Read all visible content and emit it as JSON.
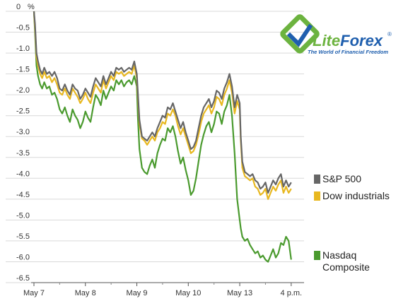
{
  "logo": {
    "text_lite": "Lite",
    "text_forex": "Forex",
    "registered": "®",
    "tagline": "The World of Financial Freedom",
    "color_green": "#6cb33f",
    "color_blue": "#1f5fae"
  },
  "chart_data": {
    "type": "line",
    "title": "",
    "xlabel": "",
    "ylabel": "%",
    "ylim": [
      -6.5,
      0
    ],
    "yticks": [
      0,
      -0.5,
      -1.0,
      -1.5,
      -2.0,
      -2.5,
      -3.0,
      -3.5,
      -4.0,
      -4.5,
      -5.0,
      -5.5,
      -6.0,
      -6.5
    ],
    "ytick_labels": [
      "0",
      "-0.5",
      "-1.0",
      "-1.5",
      "-2.0",
      "-2.5",
      "-3.0",
      "-3.5",
      "-4.0",
      "-4.5",
      "-5.0",
      "-5.5",
      "-6.0",
      "-6.5"
    ],
    "y_unit_label": "%",
    "xlim": [
      0,
      5.25
    ],
    "x_ticks": [
      0,
      1,
      2,
      3,
      4,
      5.0
    ],
    "x_tick_labels": [
      "May 7",
      "May 8",
      "May 9",
      "May 10",
      "May 13",
      "4 p.m."
    ],
    "grid": true,
    "legend_placement": "right",
    "series": [
      {
        "name": "S&P 500",
        "color": "#666666",
        "x": [
          0,
          0.02,
          0.05,
          0.08,
          0.12,
          0.16,
          0.2,
          0.25,
          0.3,
          0.35,
          0.4,
          0.45,
          0.5,
          0.55,
          0.6,
          0.65,
          0.7,
          0.75,
          0.8,
          0.85,
          0.9,
          0.95,
          1.0,
          1.05,
          1.1,
          1.15,
          1.2,
          1.25,
          1.3,
          1.35,
          1.4,
          1.45,
          1.5,
          1.55,
          1.6,
          1.65,
          1.7,
          1.75,
          1.8,
          1.85,
          1.9,
          1.95,
          2.0,
          2.02,
          2.05,
          2.1,
          2.15,
          2.2,
          2.25,
          2.3,
          2.35,
          2.4,
          2.45,
          2.5,
          2.55,
          2.6,
          2.65,
          2.7,
          2.75,
          2.8,
          2.85,
          2.9,
          2.95,
          3.0,
          3.05,
          3.1,
          3.15,
          3.2,
          3.25,
          3.3,
          3.35,
          3.4,
          3.45,
          3.5,
          3.55,
          3.6,
          3.65,
          3.7,
          3.75,
          3.8,
          3.85,
          3.9,
          3.95,
          4.0,
          4.02,
          4.05,
          4.1,
          4.15,
          4.2,
          4.25,
          4.3,
          4.35,
          4.4,
          4.45,
          4.5,
          4.55,
          4.6,
          4.65,
          4.7,
          4.75,
          4.8,
          4.85,
          4.9,
          4.95,
          5.0
        ],
        "values": [
          0,
          -0.3,
          -1.0,
          -1.2,
          -1.4,
          -1.5,
          -1.35,
          -1.5,
          -1.45,
          -1.55,
          -1.45,
          -1.6,
          -1.85,
          -1.9,
          -1.75,
          -1.9,
          -2.0,
          -1.75,
          -1.85,
          -1.9,
          -2.1,
          -2.0,
          -1.85,
          -1.95,
          -2.05,
          -1.8,
          -1.6,
          -1.7,
          -1.8,
          -1.55,
          -1.75,
          -1.6,
          -1.45,
          -1.55,
          -1.35,
          -1.4,
          -1.35,
          -1.45,
          -1.4,
          -1.35,
          -1.4,
          -1.2,
          -1.5,
          -1.95,
          -2.6,
          -3.0,
          -3.05,
          -3.1,
          -3.0,
          -2.9,
          -3.0,
          -2.8,
          -2.65,
          -2.5,
          -2.55,
          -2.3,
          -2.35,
          -2.2,
          -2.4,
          -2.6,
          -2.8,
          -2.65,
          -2.9,
          -3.1,
          -3.3,
          -3.25,
          -3.1,
          -2.8,
          -2.5,
          -2.3,
          -2.2,
          -2.1,
          -2.3,
          -2.15,
          -1.9,
          -1.95,
          -2.1,
          -1.85,
          -1.7,
          -1.5,
          -1.8,
          -2.3,
          -2.0,
          -2.2,
          -3.0,
          -3.6,
          -3.85,
          -3.9,
          -3.95,
          -3.9,
          -4.05,
          -4.1,
          -4.25,
          -4.2,
          -4.1,
          -4.35,
          -4.2,
          -4.05,
          -4.15,
          -4.0,
          -3.9,
          -4.2,
          -4.05,
          -4.2,
          -4.1
        ]
      },
      {
        "name": "Dow industrials",
        "color": "#e8b820",
        "x": [
          0,
          0.02,
          0.05,
          0.08,
          0.12,
          0.16,
          0.2,
          0.25,
          0.3,
          0.35,
          0.4,
          0.45,
          0.5,
          0.55,
          0.6,
          0.65,
          0.7,
          0.75,
          0.8,
          0.85,
          0.9,
          0.95,
          1.0,
          1.05,
          1.1,
          1.15,
          1.2,
          1.25,
          1.3,
          1.35,
          1.4,
          1.45,
          1.5,
          1.55,
          1.6,
          1.65,
          1.7,
          1.75,
          1.8,
          1.85,
          1.9,
          1.95,
          2.0,
          2.02,
          2.05,
          2.1,
          2.15,
          2.2,
          2.25,
          2.3,
          2.35,
          2.4,
          2.45,
          2.5,
          2.55,
          2.6,
          2.65,
          2.7,
          2.75,
          2.8,
          2.85,
          2.9,
          2.95,
          3.0,
          3.05,
          3.1,
          3.15,
          3.2,
          3.25,
          3.3,
          3.35,
          3.4,
          3.45,
          3.5,
          3.55,
          3.6,
          3.65,
          3.7,
          3.75,
          3.8,
          3.85,
          3.9,
          3.95,
          4.0,
          4.02,
          4.05,
          4.1,
          4.15,
          4.2,
          4.25,
          4.3,
          4.35,
          4.4,
          4.45,
          4.5,
          4.55,
          4.6,
          4.65,
          4.7,
          4.75,
          4.8,
          4.85,
          4.9,
          4.95,
          5.0
        ],
        "values": [
          0,
          -0.4,
          -1.1,
          -1.3,
          -1.5,
          -1.6,
          -1.45,
          -1.6,
          -1.55,
          -1.7,
          -1.6,
          -1.75,
          -1.95,
          -2.0,
          -1.85,
          -2.0,
          -2.1,
          -1.85,
          -1.95,
          -2.05,
          -2.2,
          -2.1,
          -1.95,
          -2.1,
          -2.2,
          -1.95,
          -1.75,
          -1.85,
          -1.95,
          -1.65,
          -1.85,
          -1.7,
          -1.55,
          -1.65,
          -1.45,
          -1.5,
          -1.45,
          -1.55,
          -1.5,
          -1.45,
          -1.5,
          -1.3,
          -1.6,
          -2.05,
          -2.7,
          -3.05,
          -3.1,
          -3.2,
          -3.1,
          -3.0,
          -3.1,
          -2.9,
          -2.8,
          -2.65,
          -2.7,
          -2.45,
          -2.5,
          -2.35,
          -2.5,
          -2.75,
          -2.95,
          -2.8,
          -3.0,
          -3.2,
          -3.4,
          -3.35,
          -3.2,
          -2.95,
          -2.65,
          -2.45,
          -2.35,
          -2.25,
          -2.45,
          -2.3,
          -2.05,
          -2.1,
          -2.25,
          -2.0,
          -1.85,
          -1.65,
          -1.95,
          -2.45,
          -2.15,
          -2.35,
          -3.1,
          -3.75,
          -3.95,
          -4.0,
          -4.05,
          -4.0,
          -4.2,
          -4.25,
          -4.4,
          -4.35,
          -4.25,
          -4.5,
          -4.35,
          -4.2,
          -4.3,
          -4.15,
          -4.05,
          -4.35,
          -4.2,
          -4.35,
          -4.25
        ]
      },
      {
        "name": "Nasdaq Composite",
        "color": "#4a9a2e",
        "x": [
          0,
          0.02,
          0.05,
          0.08,
          0.12,
          0.16,
          0.2,
          0.25,
          0.3,
          0.35,
          0.4,
          0.45,
          0.5,
          0.55,
          0.6,
          0.65,
          0.7,
          0.75,
          0.8,
          0.85,
          0.9,
          0.95,
          1.0,
          1.05,
          1.1,
          1.15,
          1.2,
          1.25,
          1.3,
          1.35,
          1.4,
          1.45,
          1.5,
          1.55,
          1.6,
          1.65,
          1.7,
          1.75,
          1.8,
          1.85,
          1.9,
          1.95,
          2.0,
          2.02,
          2.05,
          2.1,
          2.15,
          2.2,
          2.25,
          2.3,
          2.35,
          2.4,
          2.45,
          2.5,
          2.55,
          2.6,
          2.65,
          2.7,
          2.75,
          2.8,
          2.85,
          2.9,
          2.95,
          3.0,
          3.05,
          3.1,
          3.15,
          3.2,
          3.25,
          3.3,
          3.35,
          3.4,
          3.45,
          3.5,
          3.55,
          3.6,
          3.65,
          3.7,
          3.75,
          3.8,
          3.85,
          3.9,
          3.95,
          4.0,
          4.02,
          4.05,
          4.1,
          4.15,
          4.2,
          4.25,
          4.3,
          4.35,
          4.4,
          4.45,
          4.5,
          4.55,
          4.6,
          4.65,
          4.7,
          4.75,
          4.8,
          4.85,
          4.9,
          4.95,
          5.0
        ],
        "values": [
          0,
          -0.5,
          -1.3,
          -1.55,
          -1.75,
          -1.85,
          -1.7,
          -1.85,
          -1.8,
          -2.0,
          -1.95,
          -2.1,
          -2.35,
          -2.45,
          -2.3,
          -2.5,
          -2.65,
          -2.35,
          -2.5,
          -2.6,
          -2.8,
          -2.65,
          -2.4,
          -2.55,
          -2.65,
          -2.3,
          -2.0,
          -2.1,
          -2.25,
          -1.9,
          -2.1,
          -1.95,
          -1.8,
          -1.9,
          -1.65,
          -1.75,
          -1.65,
          -1.8,
          -1.7,
          -1.65,
          -1.75,
          -1.55,
          -1.8,
          -2.55,
          -3.3,
          -3.75,
          -3.85,
          -3.9,
          -3.7,
          -3.55,
          -3.75,
          -3.4,
          -3.2,
          -3.05,
          -3.1,
          -2.8,
          -2.9,
          -2.75,
          -3.0,
          -3.35,
          -3.65,
          -3.5,
          -3.8,
          -4.05,
          -4.4,
          -4.3,
          -4.0,
          -3.6,
          -3.2,
          -2.95,
          -2.75,
          -2.65,
          -2.9,
          -2.7,
          -2.4,
          -2.45,
          -2.7,
          -2.4,
          -2.25,
          -2.0,
          -2.5,
          -3.4,
          -4.5,
          -5.0,
          -5.2,
          -5.4,
          -5.5,
          -5.45,
          -5.6,
          -5.7,
          -5.8,
          -5.75,
          -5.9,
          -5.85,
          -5.95,
          -6.0,
          -5.85,
          -5.7,
          -5.9,
          -5.8,
          -5.55,
          -5.6,
          -5.4,
          -5.5,
          -5.95
        ]
      }
    ]
  }
}
